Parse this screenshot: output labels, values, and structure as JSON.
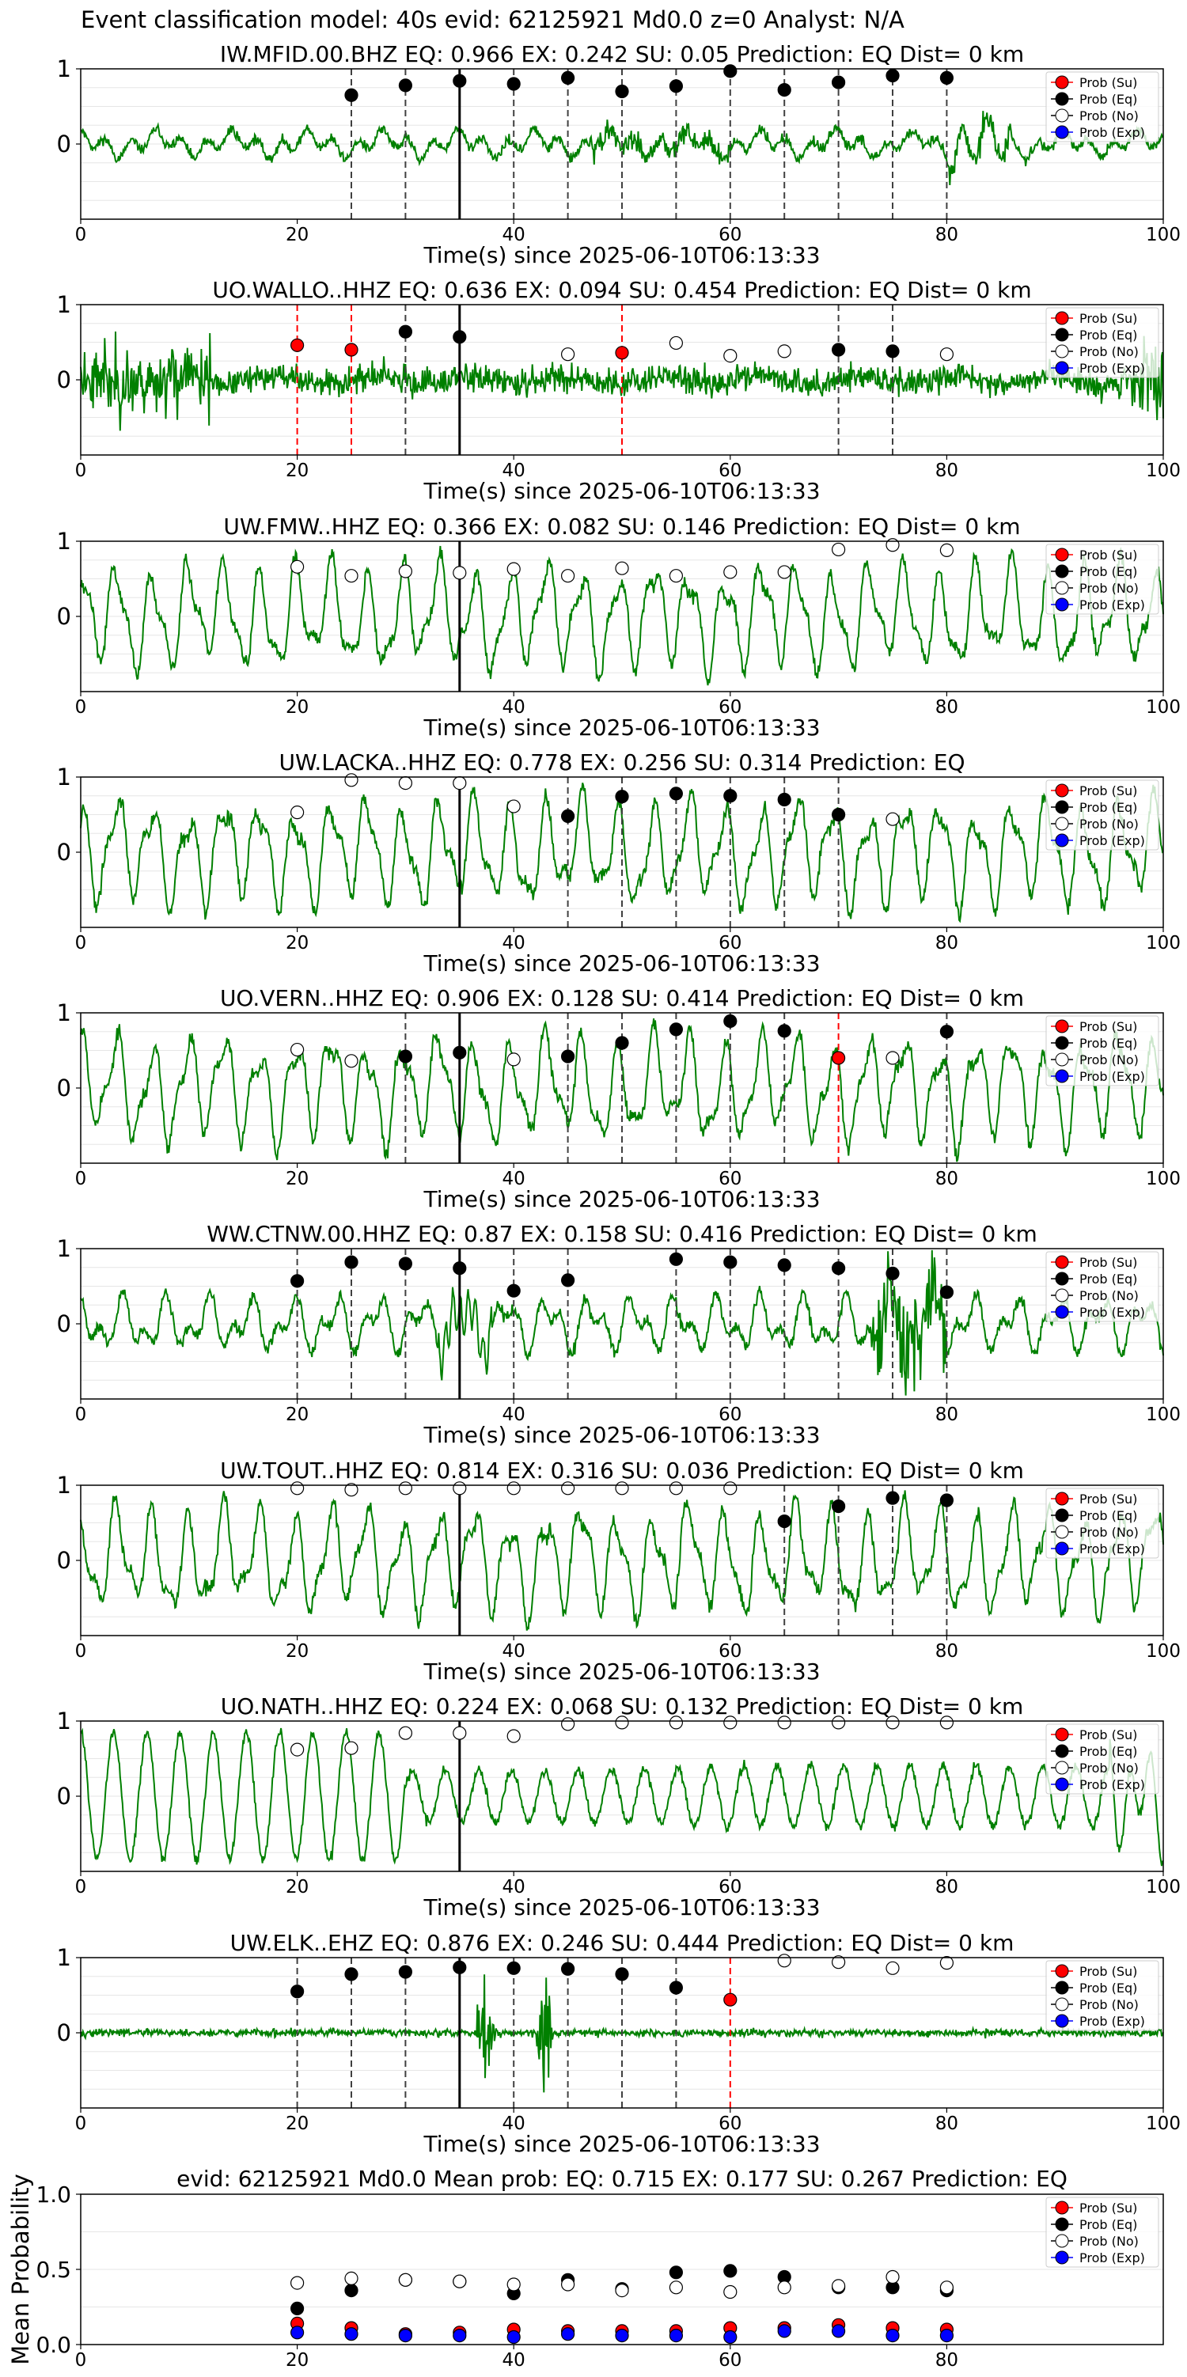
{
  "suptitle": "Event classification model: 40s evid: 62125921 Md0.0 z=0 Analyst: N/A",
  "legend": [
    "Prob (Su)",
    "Prob (Eq)",
    "Prob (No)",
    "Prob (Exp)"
  ],
  "colors": {
    "trace": "#008000",
    "su": "#ff0000",
    "eq": "#000000",
    "no": "#ffffff",
    "exp": "#0000ff",
    "quake_line": "#000000"
  },
  "chart_data": [
    {
      "type": "line",
      "title": "IW.MFID.00.BHZ   EQ: 0.966  EX: 0.242  SU: 0.05   Prediction: EQ    Dist= 0 km",
      "xlabel": "Time(s) since 2025-06-10T06:13:33",
      "ylabel": "",
      "xlim": [
        0,
        100
      ],
      "ylim": [
        -1,
        1
      ],
      "xticks": [
        "0",
        "20",
        "40",
        "60",
        "80",
        "100"
      ],
      "yticks": [
        "0",
        "1"
      ],
      "origin_time": 35,
      "grid": true,
      "legend_position": "upper right",
      "trace": {
        "seed": 11,
        "style": "mfid"
      },
      "series": [
        {
          "name": "Prob (Eq)",
          "class": "eq",
          "points": [
            [
              25,
              0.65
            ],
            [
              30,
              0.78
            ],
            [
              35,
              0.84
            ],
            [
              40,
              0.8
            ],
            [
              45,
              0.88
            ],
            [
              50,
              0.7
            ],
            [
              55,
              0.77
            ],
            [
              60,
              0.97
            ],
            [
              65,
              0.72
            ],
            [
              70,
              0.82
            ],
            [
              75,
              0.91
            ],
            [
              80,
              0.88
            ]
          ]
        }
      ]
    },
    {
      "type": "line",
      "title": "UO.WALLO..HHZ   EQ: 0.636  EX: 0.094  SU: 0.454   Prediction: EQ    Dist= 0 km",
      "xlabel": "Time(s) since 2025-06-10T06:13:33",
      "ylabel": "",
      "xlim": [
        0,
        100
      ],
      "ylim": [
        -1,
        1
      ],
      "xticks": [
        "0",
        "20",
        "40",
        "60",
        "80",
        "100"
      ],
      "yticks": [
        "0",
        "1"
      ],
      "origin_time": 35,
      "grid": true,
      "legend_position": "upper right",
      "trace": {
        "seed": 23,
        "style": "noisy"
      },
      "series": [
        {
          "name": "Prob (Su)",
          "class": "su",
          "points": [
            [
              20,
              0.46
            ],
            [
              25,
              0.4
            ],
            [
              50,
              0.36
            ]
          ]
        },
        {
          "name": "Prob (Eq)",
          "class": "eq",
          "points": [
            [
              30,
              0.64
            ],
            [
              35,
              0.57
            ],
            [
              70,
              0.4
            ],
            [
              75,
              0.38
            ]
          ]
        },
        {
          "name": "Prob (No)",
          "class": "no",
          "points": [
            [
              45,
              0.34
            ],
            [
              55,
              0.49
            ],
            [
              60,
              0.32
            ],
            [
              65,
              0.38
            ],
            [
              80,
              0.34
            ]
          ]
        }
      ]
    },
    {
      "type": "line",
      "title": "UW.FMW..HHZ   EQ: 0.366  EX: 0.082  SU: 0.146   Prediction: EQ    Dist= 0 km",
      "xlabel": "Time(s) since 2025-06-10T06:13:33",
      "ylabel": "",
      "xlim": [
        0,
        100
      ],
      "ylim": [
        -1,
        1
      ],
      "xticks": [
        "0",
        "20",
        "40",
        "60",
        "80",
        "100"
      ],
      "yticks": [
        "0",
        "1"
      ],
      "origin_time": 35,
      "grid": true,
      "legend_position": "upper right",
      "trace": {
        "seed": 37,
        "style": "wave"
      },
      "series": [
        {
          "name": "Prob (No)",
          "class": "no",
          "points": [
            [
              20,
              0.66
            ],
            [
              25,
              0.54
            ],
            [
              30,
              0.6
            ],
            [
              35,
              0.58
            ],
            [
              40,
              0.63
            ],
            [
              45,
              0.54
            ],
            [
              50,
              0.64
            ],
            [
              55,
              0.54
            ],
            [
              60,
              0.59
            ],
            [
              65,
              0.59
            ],
            [
              70,
              0.89
            ],
            [
              75,
              0.95
            ],
            [
              80,
              0.88
            ]
          ]
        }
      ]
    },
    {
      "type": "line",
      "title": "UW.LACKA..HHZ   EQ: 0.778  EX: 0.256  SU: 0.314   Prediction: EQ",
      "xlabel": "Time(s) since 2025-06-10T06:13:33",
      "ylabel": "",
      "xlim": [
        0,
        100
      ],
      "ylim": [
        -1,
        1
      ],
      "xticks": [
        "0",
        "20",
        "40",
        "60",
        "80",
        "100"
      ],
      "yticks": [
        "0",
        "1"
      ],
      "origin_time": 35,
      "grid": true,
      "legend_position": "upper right",
      "trace": {
        "seed": 41,
        "style": "wave"
      },
      "series": [
        {
          "name": "Prob (Eq)",
          "class": "eq",
          "points": [
            [
              45,
              0.48
            ],
            [
              50,
              0.74
            ],
            [
              55,
              0.78
            ],
            [
              60,
              0.75
            ],
            [
              65,
              0.7
            ],
            [
              70,
              0.5
            ]
          ]
        },
        {
          "name": "Prob (No)",
          "class": "no",
          "points": [
            [
              20,
              0.53
            ],
            [
              25,
              0.96
            ],
            [
              30,
              0.92
            ],
            [
              35,
              0.92
            ],
            [
              40,
              0.61
            ],
            [
              75,
              0.44
            ]
          ]
        }
      ]
    },
    {
      "type": "line",
      "title": "UO.VERN..HHZ   EQ: 0.906  EX: 0.128  SU: 0.414   Prediction: EQ    Dist= 0 km",
      "xlabel": "Time(s) since 2025-06-10T06:13:33",
      "ylabel": "",
      "xlim": [
        0,
        100
      ],
      "ylim": [
        -1,
        1
      ],
      "xticks": [
        "0",
        "20",
        "40",
        "60",
        "80",
        "100"
      ],
      "yticks": [
        "0",
        "1"
      ],
      "origin_time": 35,
      "grid": true,
      "legend_position": "upper right",
      "trace": {
        "seed": 53,
        "style": "wave"
      },
      "series": [
        {
          "name": "Prob (Su)",
          "class": "su",
          "points": [
            [
              70,
              0.4
            ]
          ]
        },
        {
          "name": "Prob (Eq)",
          "class": "eq",
          "points": [
            [
              30,
              0.42
            ],
            [
              35,
              0.47
            ],
            [
              45,
              0.42
            ],
            [
              50,
              0.6
            ],
            [
              55,
              0.78
            ],
            [
              60,
              0.89
            ],
            [
              65,
              0.76
            ],
            [
              80,
              0.75
            ]
          ]
        },
        {
          "name": "Prob (No)",
          "class": "no",
          "points": [
            [
              20,
              0.51
            ],
            [
              25,
              0.36
            ],
            [
              40,
              0.38
            ],
            [
              75,
              0.4
            ]
          ]
        }
      ]
    },
    {
      "type": "line",
      "title": "WW.CTNW.00.HHZ   EQ: 0.87  EX: 0.158  SU: 0.416   Prediction: EQ    Dist= 0 km",
      "xlabel": "Time(s) since 2025-06-10T06:13:33",
      "ylabel": "",
      "xlim": [
        0,
        100
      ],
      "ylim": [
        -1,
        1
      ],
      "xticks": [
        "0",
        "20",
        "40",
        "60",
        "80",
        "100"
      ],
      "yticks": [
        "0",
        "1"
      ],
      "origin_time": 35,
      "grid": true,
      "legend_position": "upper right",
      "trace": {
        "seed": 67,
        "style": "ctnw"
      },
      "series": [
        {
          "name": "Prob (Eq)",
          "class": "eq",
          "points": [
            [
              20,
              0.57
            ],
            [
              25,
              0.82
            ],
            [
              30,
              0.8
            ],
            [
              35,
              0.74
            ],
            [
              40,
              0.44
            ],
            [
              45,
              0.58
            ],
            [
              55,
              0.86
            ],
            [
              60,
              0.82
            ],
            [
              65,
              0.78
            ],
            [
              70,
              0.74
            ],
            [
              75,
              0.67
            ],
            [
              80,
              0.42
            ]
          ]
        }
      ]
    },
    {
      "type": "line",
      "title": "UW.TOUT..HHZ   EQ: 0.814  EX: 0.316  SU: 0.036   Prediction: EQ    Dist= 0 km",
      "xlabel": "Time(s) since 2025-06-10T06:13:33",
      "ylabel": "",
      "xlim": [
        0,
        100
      ],
      "ylim": [
        -1,
        1
      ],
      "xticks": [
        "0",
        "20",
        "40",
        "60",
        "80",
        "100"
      ],
      "yticks": [
        "0",
        "1"
      ],
      "origin_time": 35,
      "grid": true,
      "legend_position": "upper right",
      "trace": {
        "seed": 79,
        "style": "wave"
      },
      "series": [
        {
          "name": "Prob (Eq)",
          "class": "eq",
          "points": [
            [
              65,
              0.52
            ],
            [
              70,
              0.72
            ],
            [
              75,
              0.83
            ],
            [
              80,
              0.8
            ]
          ]
        },
        {
          "name": "Prob (No)",
          "class": "no",
          "points": [
            [
              20,
              0.96
            ],
            [
              25,
              0.94
            ],
            [
              30,
              0.96
            ],
            [
              35,
              0.96
            ],
            [
              40,
              0.96
            ],
            [
              45,
              0.96
            ],
            [
              50,
              0.96
            ],
            [
              55,
              0.96
            ],
            [
              60,
              0.96
            ]
          ]
        }
      ]
    },
    {
      "type": "line",
      "title": "UO.NATH..HHZ   EQ: 0.224  EX: 0.068  SU: 0.132   Prediction: EQ    Dist= 0 km",
      "xlabel": "Time(s) since 2025-06-10T06:13:33",
      "ylabel": "",
      "xlim": [
        0,
        100
      ],
      "ylim": [
        -1,
        1
      ],
      "xticks": [
        "0",
        "20",
        "40",
        "60",
        "80",
        "100"
      ],
      "yticks": [
        "0",
        "1"
      ],
      "origin_time": 35,
      "grid": true,
      "legend_position": "upper right",
      "trace": {
        "seed": 83,
        "style": "nath"
      },
      "series": [
        {
          "name": "Prob (No)",
          "class": "no",
          "points": [
            [
              20,
              0.62
            ],
            [
              25,
              0.64
            ],
            [
              30,
              0.84
            ],
            [
              35,
              0.84
            ],
            [
              40,
              0.8
            ],
            [
              45,
              0.96
            ],
            [
              50,
              0.98
            ],
            [
              55,
              0.98
            ],
            [
              60,
              0.98
            ],
            [
              65,
              0.98
            ],
            [
              70,
              0.98
            ],
            [
              75,
              0.98
            ],
            [
              80,
              0.98
            ]
          ]
        }
      ]
    },
    {
      "type": "line",
      "title": "UW.ELK..EHZ   EQ: 0.876  EX: 0.246  SU: 0.444   Prediction: EQ    Dist= 0 km",
      "xlabel": "Time(s) since 2025-06-10T06:13:33",
      "ylabel": "",
      "xlim": [
        0,
        100
      ],
      "ylim": [
        -1,
        1
      ],
      "xticks": [
        "0",
        "20",
        "40",
        "60",
        "80",
        "100"
      ],
      "yticks": [
        "0",
        "1"
      ],
      "origin_time": 35,
      "grid": true,
      "legend_position": "upper right",
      "trace": {
        "seed": 97,
        "style": "elk"
      },
      "series": [
        {
          "name": "Prob (Su)",
          "class": "su",
          "points": [
            [
              60,
              0.44
            ]
          ]
        },
        {
          "name": "Prob (Eq)",
          "class": "eq",
          "points": [
            [
              20,
              0.55
            ],
            [
              25,
              0.78
            ],
            [
              30,
              0.81
            ],
            [
              35,
              0.87
            ],
            [
              40,
              0.86
            ],
            [
              45,
              0.85
            ],
            [
              50,
              0.78
            ],
            [
              55,
              0.6
            ]
          ]
        },
        {
          "name": "Prob (No)",
          "class": "no",
          "points": [
            [
              65,
              0.96
            ],
            [
              70,
              0.94
            ],
            [
              75,
              0.86
            ],
            [
              80,
              0.93
            ]
          ]
        }
      ]
    },
    {
      "type": "scatter",
      "title": "evid: 62125921  Md0.0   Mean prob:   EQ: 0.715  EX: 0.177  SU: 0.267   Prediction: EQ",
      "xlabel": "",
      "ylabel": "Mean Probability",
      "xlim": [
        0,
        100
      ],
      "ylim": [
        0,
        1
      ],
      "xticks": [
        "0",
        "20",
        "40",
        "60",
        "80"
      ],
      "yticks": [
        "0.0",
        "0.5",
        "1.0"
      ],
      "grid": true,
      "legend_position": "upper right",
      "x": [
        20,
        25,
        30,
        35,
        40,
        45,
        50,
        55,
        60,
        65,
        70,
        75,
        80
      ],
      "series": [
        {
          "name": "Prob (Su)",
          "class": "su",
          "values": [
            0.14,
            0.11,
            0.07,
            0.08,
            0.1,
            0.09,
            0.09,
            0.09,
            0.11,
            0.11,
            0.13,
            0.11,
            0.1
          ]
        },
        {
          "name": "Prob (Exp)",
          "class": "exp",
          "values": [
            0.08,
            0.07,
            0.06,
            0.06,
            0.05,
            0.07,
            0.06,
            0.06,
            0.05,
            0.09,
            0.09,
            0.06,
            0.06
          ]
        },
        {
          "name": "Prob (Eq)",
          "class": "eq",
          "values": [
            0.24,
            0.36,
            0.43,
            0.42,
            0.34,
            0.43,
            0.37,
            0.48,
            0.49,
            0.45,
            0.38,
            0.38,
            0.36
          ]
        },
        {
          "name": "Prob (No)",
          "class": "no",
          "values": [
            0.41,
            0.44,
            0.43,
            0.42,
            0.4,
            0.4,
            0.36,
            0.38,
            0.35,
            0.38,
            0.39,
            0.45,
            0.38
          ]
        }
      ]
    }
  ]
}
